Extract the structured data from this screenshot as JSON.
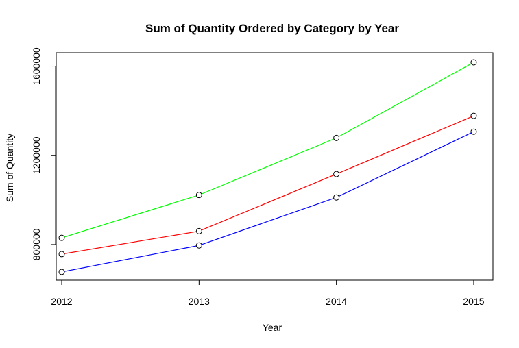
{
  "chart_data": {
    "type": "line",
    "title": "Sum of Quantity Ordered by Category by Year",
    "xlabel": "Year",
    "ylabel": "Sum of Quantity",
    "x": [
      2012,
      2013,
      2014,
      2015
    ],
    "x_tick_labels": [
      "2012",
      "2013",
      "2014",
      "2015"
    ],
    "y_ticks": [
      800000,
      1200000,
      1600000
    ],
    "y_tick_labels": [
      "800000",
      "1200000",
      "1600000"
    ],
    "xlim": [
      2011.96,
      2015.14
    ],
    "ylim": [
      640000,
      1660000
    ],
    "grid": false,
    "legend": "none",
    "marker": "open-circle",
    "series": [
      {
        "color": "#00ff00",
        "values": [
          830000,
          1022000,
          1278000,
          1617000
        ]
      },
      {
        "color": "#ff0000",
        "values": [
          757000,
          860000,
          1116000,
          1377000
        ]
      },
      {
        "color": "#0000ff",
        "values": [
          677000,
          796000,
          1011000,
          1306000
        ]
      }
    ]
  }
}
